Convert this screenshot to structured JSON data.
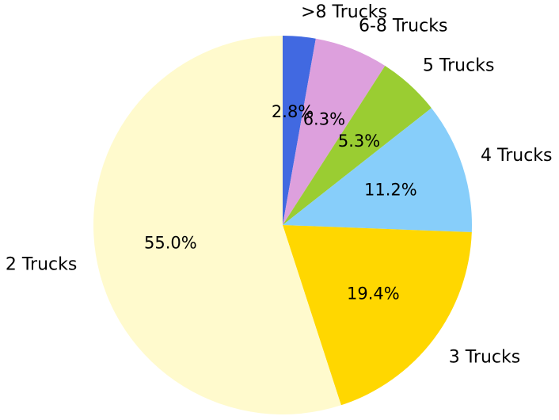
{
  "chart_data": {
    "type": "pie",
    "title": "",
    "start_angle_deg": 90,
    "direction": "clockwise",
    "slices": [
      {
        "label": ">8 Trucks",
        "value": 2.8,
        "pct_label": "2.8%",
        "color": "#4169E1"
      },
      {
        "label": "6-8 Trucks",
        "value": 6.3,
        "pct_label": "6.3%",
        "color": "#DDA0DD"
      },
      {
        "label": "5 Trucks",
        "value": 5.3,
        "pct_label": "5.3%",
        "color": "#9ACD32"
      },
      {
        "label": "4 Trucks",
        "value": 11.2,
        "pct_label": "11.2%",
        "color": "#87CEFA"
      },
      {
        "label": "3 Trucks",
        "value": 19.4,
        "pct_label": "19.4%",
        "color": "#FFD700"
      },
      {
        "label": "2 Trucks",
        "value": 55.0,
        "pct_label": "55.0%",
        "color": "#FFFACD"
      }
    ]
  }
}
